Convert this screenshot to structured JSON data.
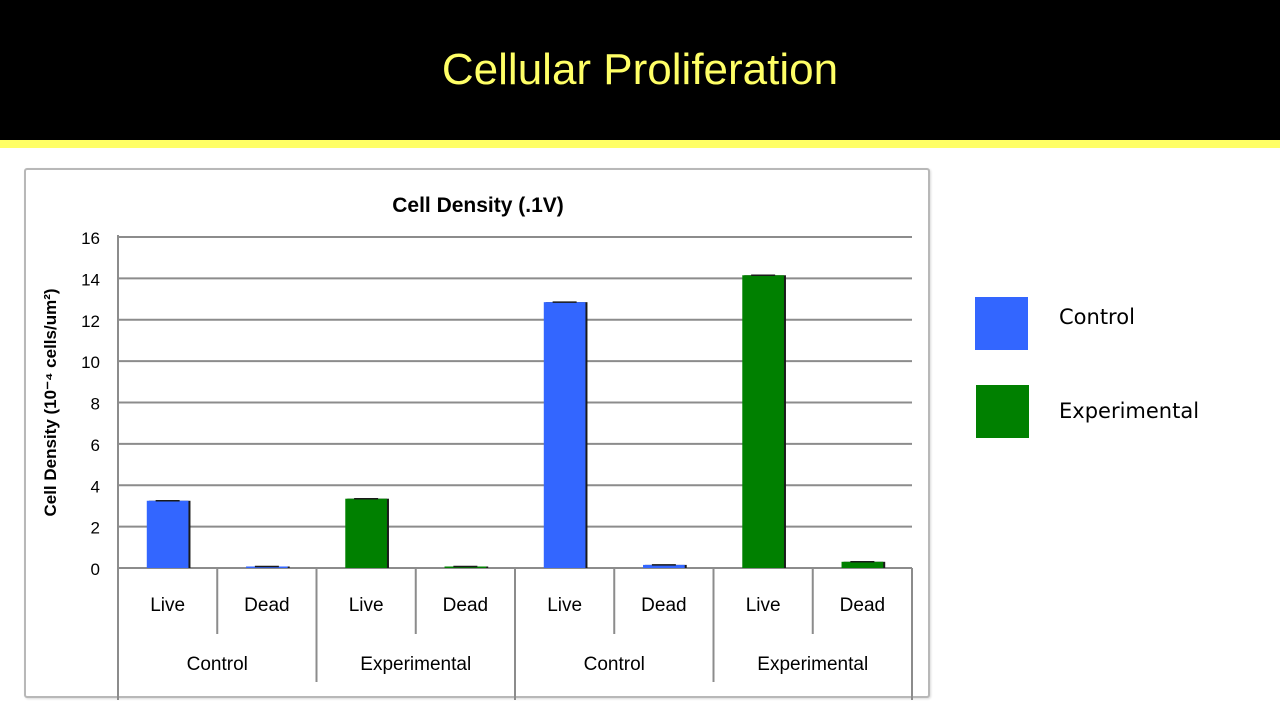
{
  "slide": {
    "title": "Cellular Proliferation",
    "title_color": "#ffff66",
    "background_header": "#000000"
  },
  "legend": [
    {
      "label": "Control",
      "color": "#3366ff"
    },
    {
      "label": "Experimental",
      "color": "#008000"
    }
  ],
  "chart_data": {
    "type": "bar",
    "title": "Cell Density (.1V)",
    "ylabel": "Cell Density (10⁻⁴ cells/um²)",
    "ylim": [
      0,
      16
    ],
    "yticks": [
      0,
      2,
      4,
      6,
      8,
      10,
      12,
      14,
      16
    ],
    "grid": true,
    "categories": [
      "Live",
      "Dead",
      "Live",
      "Dead",
      "Live",
      "Dead",
      "Live",
      "Dead"
    ],
    "groups": [
      {
        "label": "Control",
        "span": 2
      },
      {
        "label": "Experimental",
        "span": 2
      },
      {
        "label": "Control",
        "span": 2
      },
      {
        "label": "Experimental",
        "span": 2
      }
    ],
    "values": [
      3.25,
      0.02,
      3.35,
      0.02,
      12.85,
      0.15,
      14.15,
      0.3
    ],
    "bar_colors": [
      "#3366ff",
      "#3366ff",
      "#008000",
      "#008000",
      "#3366ff",
      "#3366ff",
      "#008000",
      "#008000"
    ]
  }
}
